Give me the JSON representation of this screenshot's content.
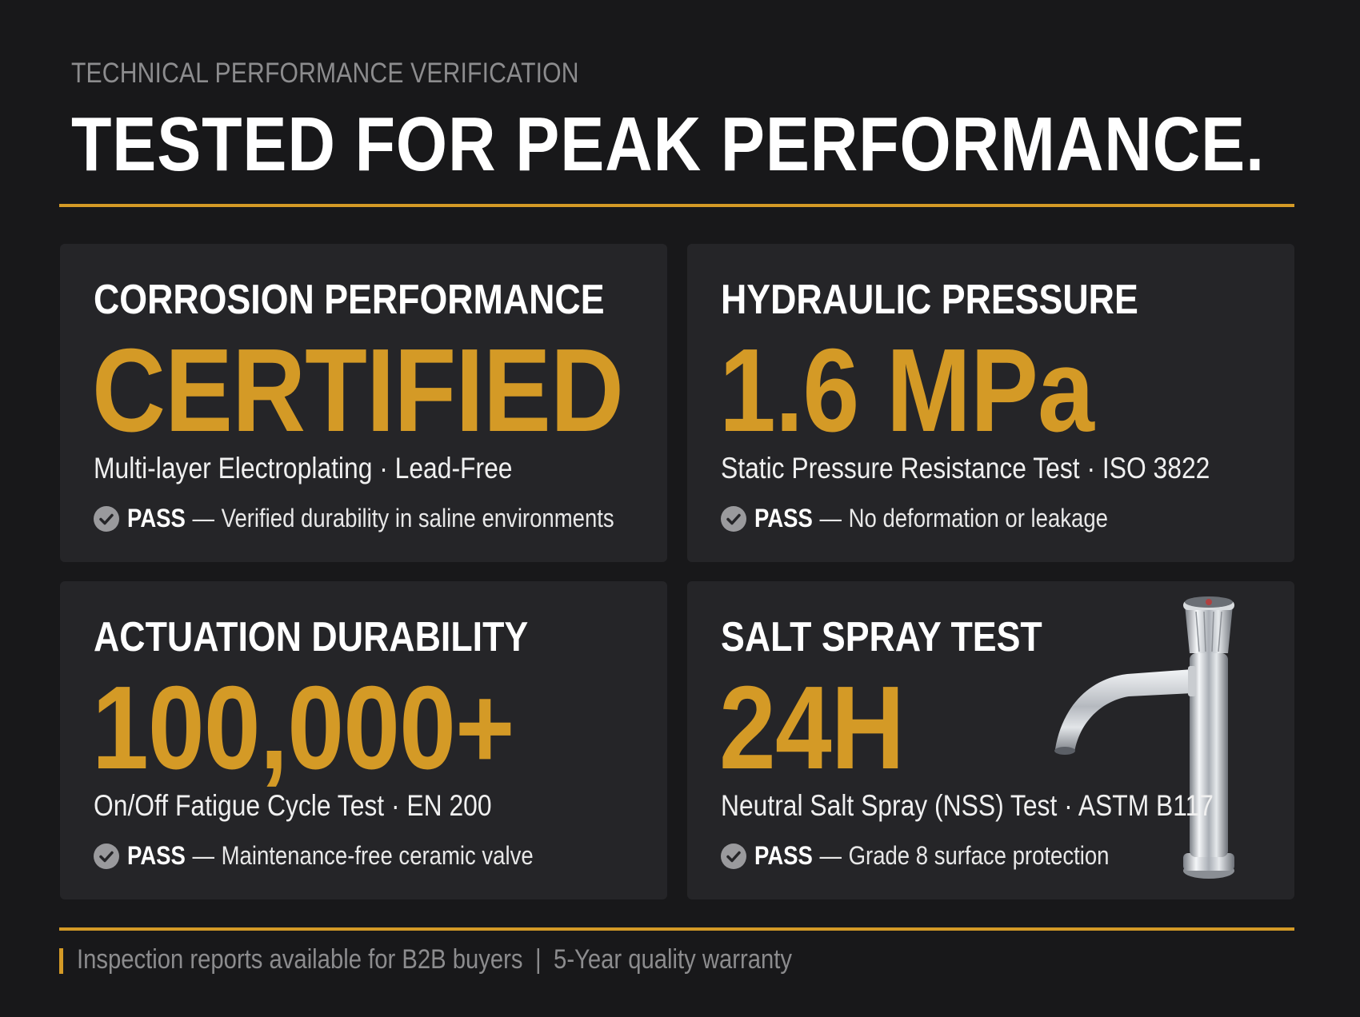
{
  "header": {
    "eyebrow": "TECHNICAL PERFORMANCE VERIFICATION",
    "headline": "TESTED FOR PEAK PERFORMANCE."
  },
  "cards": [
    {
      "title": "CORROSION PERFORMANCE",
      "value": "CERTIFIED",
      "subtitle": "Multi-layer Electroplating · Lead-Free",
      "pass_label": "PASS",
      "pass_note": "Verified durability in saline environments",
      "icon": "check-circle-icon"
    },
    {
      "title": "HYDRAULIC PRESSURE",
      "value": "1.6 MPa",
      "subtitle": "Static Pressure Resistance Test · ISO 3822",
      "pass_label": "PASS",
      "pass_note": "No deformation or leakage",
      "icon": "check-circle-icon"
    },
    {
      "title": "ACTUATION DURABILITY",
      "value": "100,000+",
      "subtitle": "On/Off Fatigue Cycle Test · EN 200",
      "pass_label": "PASS",
      "pass_note": "Maintenance-free ceramic valve",
      "icon": "check-circle-icon"
    },
    {
      "title": "SALT SPRAY TEST",
      "value": "24H",
      "subtitle": "Neutral Salt Spray (NSS) Test · ASTM B117",
      "pass_label": "PASS",
      "pass_note": "Grade 8 surface protection",
      "icon": "check-circle-icon",
      "image": "chrome-faucet"
    }
  ],
  "footer": {
    "left": "Inspection reports available for B2B buyers",
    "separator": "|",
    "right": "5-Year quality warranty"
  },
  "colors": {
    "background": "#18181a",
    "card": "#252528",
    "accent": "#d49a26",
    "text": "#ffffff",
    "muted": "#8c8c8e"
  }
}
